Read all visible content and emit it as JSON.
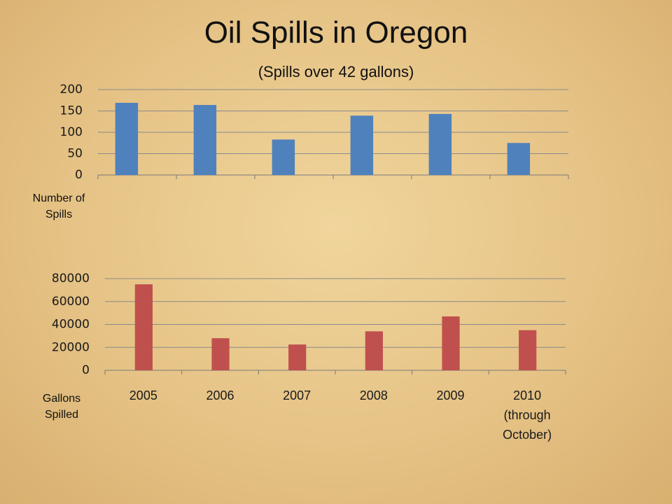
{
  "title": "Oil Spills in Oregon",
  "subtitle": "(Spills over 42 gallons)",
  "chart_data": [
    {
      "type": "bar",
      "y_label": "Number of Spills",
      "categories": [
        null,
        null,
        null,
        null,
        null,
        null
      ],
      "values": [
        169,
        164,
        83,
        139,
        143,
        75
      ],
      "color": "#4f81bd",
      "ylim": [
        0,
        200
      ],
      "yticks": [
        0,
        50,
        100,
        150,
        200
      ],
      "grid": true
    },
    {
      "type": "bar",
      "y_label": "Gallons Spilled",
      "categories": [
        "2005",
        "2006",
        "2007",
        "2008",
        "2009",
        "2010 (through October)"
      ],
      "values": [
        75000,
        28000,
        22500,
        34000,
        47000,
        35000
      ],
      "color": "#c0504d",
      "ylim": [
        0,
        80000
      ],
      "yticks": [
        0,
        20000,
        40000,
        60000,
        80000
      ],
      "grid": true
    }
  ]
}
